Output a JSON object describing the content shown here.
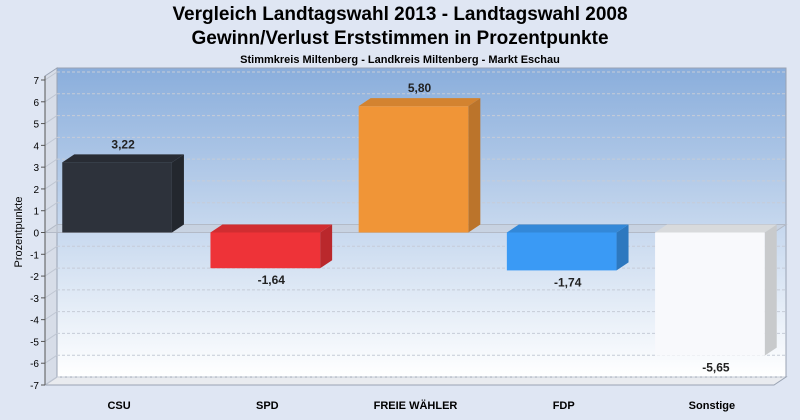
{
  "chart_data": {
    "type": "bar",
    "title": "Vergleich Landtagswahl 2013 - Landtagswahl 2008",
    "subtitle": "Gewinn/Verlust Erststimmen in Prozentpunkte",
    "caption": "Stimmkreis Miltenberg - Landkreis Miltenberg - Markt Eschau",
    "xlabel": "",
    "ylabel": "Prozentpunkte",
    "ylim": [
      -7,
      7
    ],
    "yticks": [
      7,
      6,
      5,
      4,
      3,
      2,
      1,
      0,
      -1,
      -2,
      -3,
      -4,
      -5,
      -6,
      -7
    ],
    "categories": [
      "CSU",
      "SPD",
      "FREIE WÄHLER",
      "FDP",
      "Sonstige"
    ],
    "values": [
      3.22,
      -1.64,
      5.8,
      -1.74,
      -5.65
    ],
    "value_labels": [
      "3,22",
      "-1,64",
      "5,80",
      "-1,74",
      "-5,65"
    ],
    "colors": [
      "#2d323b",
      "#ee3338",
      "#f09537",
      "#3a9af5",
      "#f8f9fc"
    ],
    "grid": true,
    "background_gradient": [
      "#8aaedc",
      "#ffffff"
    ]
  }
}
